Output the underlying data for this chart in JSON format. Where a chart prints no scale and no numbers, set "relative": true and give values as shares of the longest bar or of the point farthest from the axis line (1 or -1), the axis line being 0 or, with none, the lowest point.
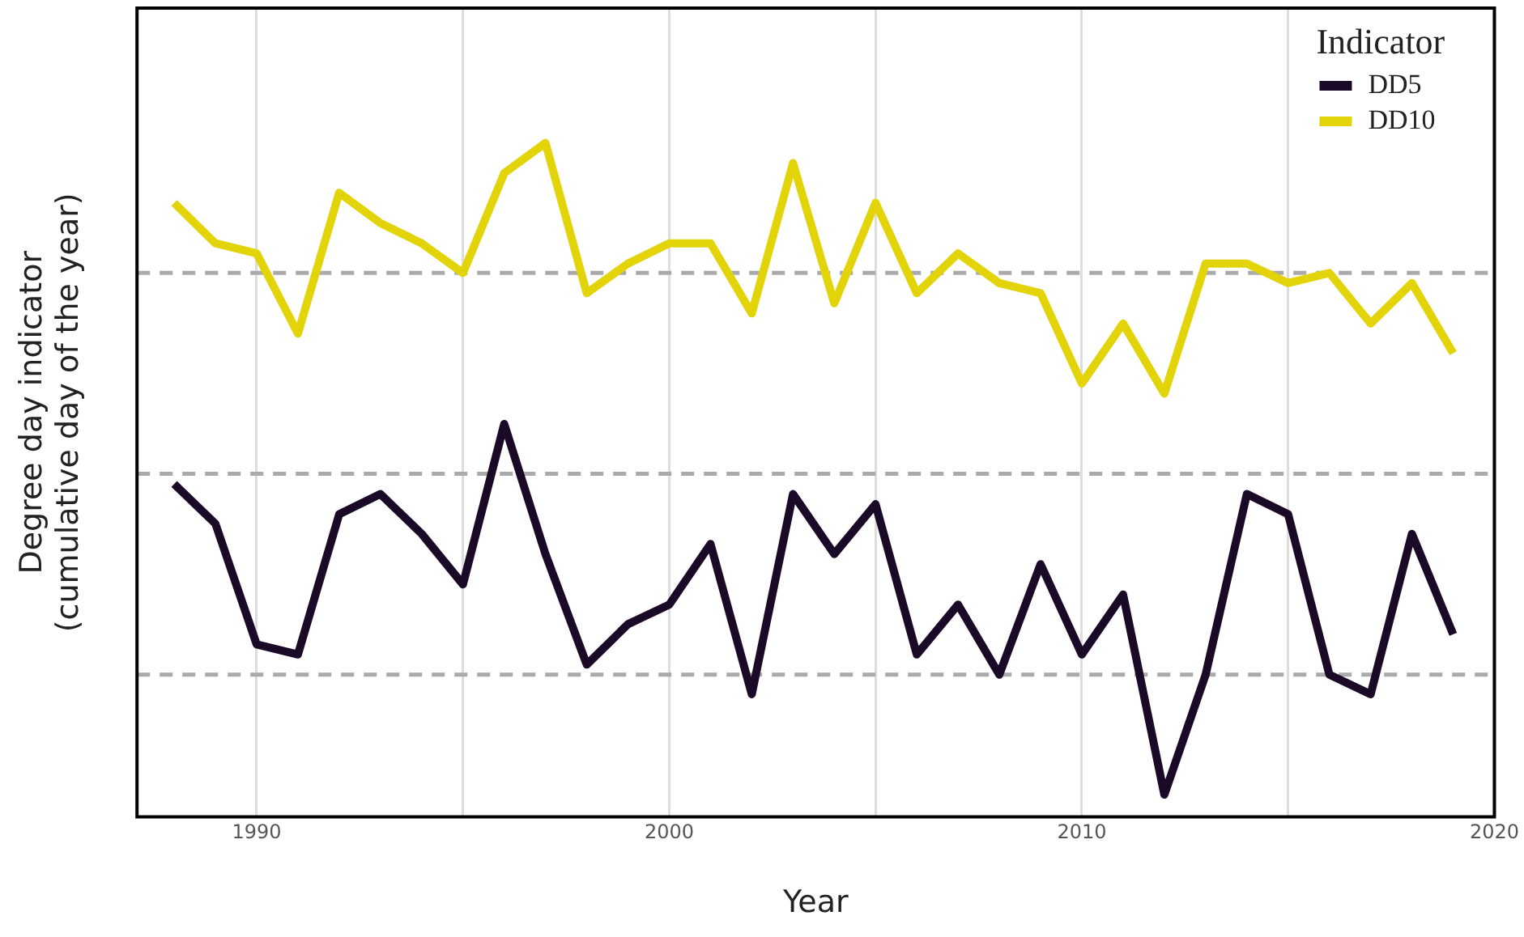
{
  "chart_data": {
    "type": "line",
    "xlabel": "Year",
    "ylabel": "Degree day indicator\n(cumulative day of the year)",
    "legend_title": "Indicator",
    "legend": "top right",
    "relative": true,
    "grid": "x",
    "line_style": "solid",
    "marker": "none",
    "x": [
      1988,
      1989,
      1990,
      1991,
      1992,
      1993,
      1994,
      1995,
      1996,
      1997,
      1998,
      1999,
      2000,
      2001,
      2002,
      2003,
      2004,
      2005,
      2006,
      2007,
      2008,
      2009,
      2010,
      2011,
      2012,
      2013,
      2014,
      2015,
      2016,
      2017,
      2018,
      2019
    ],
    "xlim": [
      1987.1,
      2020
    ],
    "xticks": [
      1990,
      {
        "value": 1995,
        "label": null
      },
      2000,
      {
        "value": 2005,
        "label": null
      },
      2010,
      {
        "value": 2015,
        "label": null
      },
      2020
    ],
    "series": [
      {
        "name": "DD5",
        "color": "#1a0a28",
        "values": [
          0.494,
          0.435,
          0.256,
          0.241,
          0.449,
          0.479,
          0.42,
          0.345,
          0.583,
          0.39,
          0.226,
          0.286,
          0.315,
          0.405,
          0.182,
          0.479,
          0.39,
          0.464,
          0.241,
          0.315,
          0.211,
          0.375,
          0.241,
          0.33,
          0.033,
          0.211,
          0.479,
          0.449,
          0.211,
          0.182,
          0.42,
          0.271
        ]
      },
      {
        "name": "DD10",
        "color": "#e3d40a",
        "values": [
          0.911,
          0.851,
          0.836,
          0.717,
          0.926,
          0.881,
          0.851,
          0.807,
          0.955,
          1,
          0.777,
          0.821,
          0.851,
          0.851,
          0.747,
          0.97,
          0.762,
          0.911,
          0.777,
          0.836,
          0.792,
          0.777,
          0.643,
          0.732,
          0.628,
          0.821,
          0.821,
          0.792,
          0.807,
          0.732,
          0.792,
          0.688
        ]
      }
    ],
    "ref_lines": [
      {
        "axis": "y",
        "value": 0.211,
        "color": "#aaaaaa",
        "line_style": "dashed"
      },
      {
        "axis": "y",
        "value": 0.509,
        "color": "#aaaaaa",
        "line_style": "dashed"
      },
      {
        "axis": "y",
        "value": 0.807,
        "color": "#aaaaaa",
        "line_style": "dashed"
      }
    ]
  }
}
